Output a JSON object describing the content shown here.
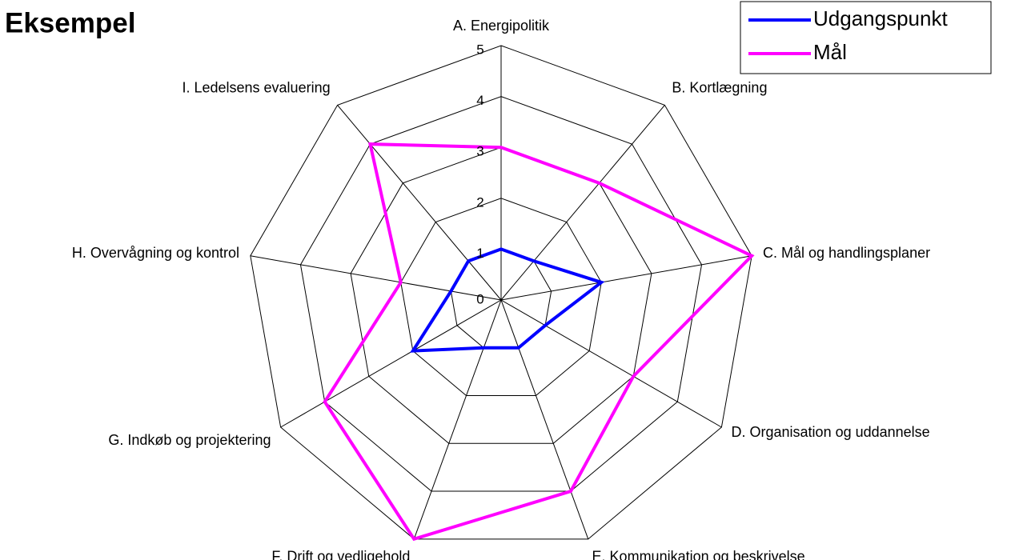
{
  "chart_data": {
    "type": "radar",
    "title": "Eksempel",
    "categories": [
      "A. Energipolitik",
      "B. Kortlægning",
      "C. Mål og handlingsplaner",
      "D. Organisation og uddannelse",
      "E. Kommunikation og beskrivelse",
      "F. Drift og vedligehold",
      "G. Indkøb og projektering",
      "H. Overvågning og kontrol",
      "I. Ledelsens evaluering"
    ],
    "series": [
      {
        "name": "Udgangspunkt",
        "color": "#0000ff",
        "values": [
          1,
          1,
          2,
          1,
          1,
          1,
          2,
          1,
          1
        ]
      },
      {
        "name": "Mål",
        "color": "#ff00ff",
        "values": [
          3,
          3,
          5,
          3,
          4,
          5,
          4,
          2,
          4
        ]
      }
    ],
    "ylim": [
      0,
      5
    ],
    "yticks": [
      0,
      1,
      2,
      3,
      4,
      5
    ],
    "grid": true,
    "legend": "top-right"
  }
}
